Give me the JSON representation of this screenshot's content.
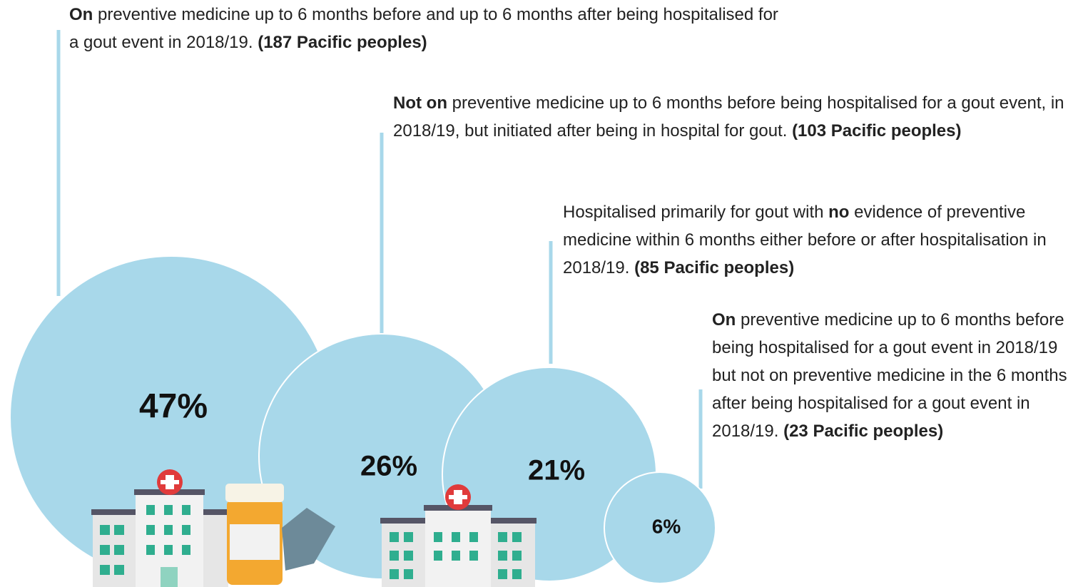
{
  "annotations": [
    {
      "parts": [
        {
          "text": "On",
          "bold": true
        },
        {
          "text": " preventive medicine up to 6 months before and up to 6 months after being hospitalised for a gout event in 2018/19. ",
          "bold": false
        },
        {
          "text": "(187 Pacific peoples)",
          "bold": true
        }
      ],
      "percent": "47%"
    },
    {
      "parts": [
        {
          "text": "Not on",
          "bold": true
        },
        {
          "text": " preventive medicine up to 6 months before being hospitalised for a gout event, in 2018/19, but initiated after being in hospital for gout. ",
          "bold": false
        },
        {
          "text": "(103 Pacific peoples)",
          "bold": true
        }
      ],
      "percent": "26%"
    },
    {
      "parts": [
        {
          "text": "Hospitalised primarily for gout with ",
          "bold": false
        },
        {
          "text": "no",
          "bold": true
        },
        {
          "text": " evidence of preventive medicine within 6 months either before or after hospitalisation in 2018/19. ",
          "bold": false
        },
        {
          "text": "(85 Pacific peoples)",
          "bold": true
        }
      ],
      "percent": "21%"
    },
    {
      "parts": [
        {
          "text": "On",
          "bold": true
        },
        {
          "text": " preventive medicine up to 6 months before being hospitalised for a gout event in 2018/19 but not on preventive medicine in the 6 months after being hospitalised for a gout event in 2018/19. ",
          "bold": false
        },
        {
          "text": "(23 Pacific peoples)",
          "bold": true
        }
      ],
      "percent": "6%"
    }
  ]
}
